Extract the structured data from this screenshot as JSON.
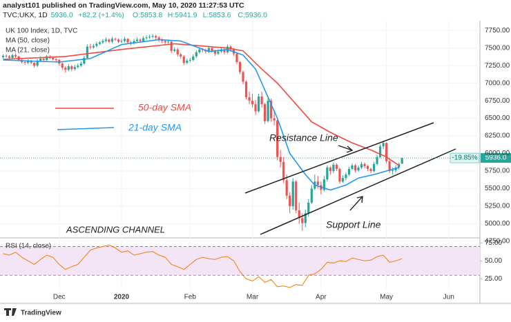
{
  "header": {
    "publisher": "analyst101 published on TradingView.com, May 10, 2020 11:27:53 UTC",
    "symbol": "TVC:UKX, 1D",
    "quote": [
      "5936.0",
      "+82.2 (+1.4%)",
      "O:5853.8",
      "H:5941.9",
      "L:5853.6",
      "C:5936.0"
    ]
  },
  "footer": {
    "brand": "TradingView"
  },
  "chart_data": {
    "type": "candlestick",
    "title": "UK 100 Index, 1D, TVC",
    "up_color": "#26a69a",
    "down_color": "#ef5350",
    "grid": true,
    "xlim": [
      -1,
      153
    ],
    "xticks": [
      {
        "value": 18,
        "label": "Dec"
      },
      {
        "value": 38,
        "label": "2020"
      },
      {
        "value": 60,
        "label": "Feb"
      },
      {
        "value": 80,
        "label": "Mar"
      },
      {
        "value": 102,
        "label": "Apr"
      },
      {
        "value": 123,
        "label": "May"
      },
      {
        "value": 143,
        "label": "Jun"
      }
    ],
    "ylim": [
      4740,
      7840
    ],
    "yticks": [
      {
        "value": 4750,
        "label": "4750.00"
      },
      {
        "value": 5000,
        "label": "5000.00"
      },
      {
        "value": 5250,
        "label": "5250.00"
      },
      {
        "value": 5500,
        "label": "5500.00"
      },
      {
        "value": 5750,
        "label": "5750.00"
      },
      {
        "value": 6000,
        "label": "6000.00"
      },
      {
        "value": 6250,
        "label": "6250.00"
      },
      {
        "value": 6500,
        "label": "6500.00"
      },
      {
        "value": 6750,
        "label": "6750.00"
      },
      {
        "value": 7000,
        "label": "7000.00"
      },
      {
        "value": 7250,
        "label": "7250.00"
      },
      {
        "value": 7500,
        "label": "7500.00"
      },
      {
        "value": 7750,
        "label": "7750.00"
      }
    ],
    "ohlc": [
      [
        7370,
        7410,
        7350,
        7390
      ],
      [
        7390,
        7410,
        7360,
        7380
      ],
      [
        7380,
        7400,
        7340,
        7360
      ],
      [
        7360,
        7420,
        7340,
        7400
      ],
      [
        7400,
        7420,
        7360,
        7380
      ],
      [
        7380,
        7390,
        7310,
        7330
      ],
      [
        7330,
        7350,
        7280,
        7300
      ],
      [
        7300,
        7320,
        7260,
        7290
      ],
      [
        7290,
        7340,
        7270,
        7310
      ],
      [
        7310,
        7330,
        7270,
        7290
      ],
      [
        7290,
        7300,
        7220,
        7250
      ],
      [
        7250,
        7340,
        7230,
        7320
      ],
      [
        7320,
        7380,
        7300,
        7350
      ],
      [
        7350,
        7370,
        7300,
        7330
      ],
      [
        7330,
        7400,
        7310,
        7380
      ],
      [
        7380,
        7400,
        7340,
        7360
      ],
      [
        7360,
        7380,
        7320,
        7340
      ],
      [
        7340,
        7360,
        7300,
        7330
      ],
      [
        7330,
        7340,
        7250,
        7280
      ],
      [
        7280,
        7300,
        7190,
        7220
      ],
      [
        7220,
        7240,
        7150,
        7190
      ],
      [
        7190,
        7270,
        7170,
        7240
      ],
      [
        7240,
        7260,
        7170,
        7200
      ],
      [
        7200,
        7260,
        7180,
        7230
      ],
      [
        7230,
        7280,
        7210,
        7250
      ],
      [
        7250,
        7310,
        7230,
        7280
      ],
      [
        7280,
        7390,
        7260,
        7360
      ],
      [
        7360,
        7550,
        7350,
        7520
      ],
      [
        7520,
        7560,
        7480,
        7510
      ],
      [
        7510,
        7560,
        7490,
        7530
      ],
      [
        7530,
        7590,
        7510,
        7560
      ],
      [
        7560,
        7600,
        7540,
        7580
      ],
      [
        7580,
        7630,
        7560,
        7600
      ],
      [
        7600,
        7650,
        7580,
        7620
      ],
      [
        7620,
        7640,
        7570,
        7590
      ],
      [
        7590,
        7660,
        7570,
        7630
      ],
      [
        7630,
        7650,
        7600,
        7620
      ],
      [
        7620,
        7640,
        7570,
        7590
      ],
      [
        7590,
        7630,
        7570,
        7600
      ],
      [
        7600,
        7660,
        7580,
        7630
      ],
      [
        7630,
        7640,
        7560,
        7580
      ],
      [
        7580,
        7600,
        7540,
        7570
      ],
      [
        7570,
        7630,
        7550,
        7600
      ],
      [
        7600,
        7650,
        7580,
        7620
      ],
      [
        7620,
        7640,
        7580,
        7600
      ],
      [
        7600,
        7670,
        7580,
        7640
      ],
      [
        7640,
        7680,
        7620,
        7650
      ],
      [
        7650,
        7690,
        7630,
        7660
      ],
      [
        7660,
        7700,
        7640,
        7670
      ],
      [
        7670,
        7690,
        7620,
        7650
      ],
      [
        7650,
        7670,
        7590,
        7620
      ],
      [
        7620,
        7640,
        7570,
        7600
      ],
      [
        7600,
        7620,
        7550,
        7580
      ],
      [
        7580,
        7620,
        7560,
        7590
      ],
      [
        7590,
        7600,
        7430,
        7460
      ],
      [
        7460,
        7510,
        7440,
        7480
      ],
      [
        7480,
        7500,
        7380,
        7410
      ],
      [
        7410,
        7430,
        7350,
        7380
      ],
      [
        7380,
        7400,
        7260,
        7290
      ],
      [
        7290,
        7350,
        7270,
        7320
      ],
      [
        7320,
        7360,
        7300,
        7330
      ],
      [
        7330,
        7410,
        7310,
        7380
      ],
      [
        7380,
        7470,
        7360,
        7440
      ],
      [
        7440,
        7510,
        7420,
        7480
      ],
      [
        7480,
        7500,
        7440,
        7470
      ],
      [
        7470,
        7490,
        7420,
        7450
      ],
      [
        7450,
        7530,
        7430,
        7500
      ],
      [
        7500,
        7520,
        7440,
        7460
      ],
      [
        7460,
        7480,
        7390,
        7420
      ],
      [
        7420,
        7480,
        7400,
        7450
      ],
      [
        7450,
        7510,
        7430,
        7480
      ],
      [
        7480,
        7500,
        7410,
        7440
      ],
      [
        7440,
        7550,
        7420,
        7520
      ],
      [
        7520,
        7540,
        7450,
        7480
      ],
      [
        7480,
        7500,
        7390,
        7420
      ],
      [
        7420,
        7430,
        7270,
        7300
      ],
      [
        7300,
        7310,
        7130,
        7160
      ],
      [
        7160,
        7180,
        6990,
        7020
      ],
      [
        7020,
        7040,
        6770,
        6800
      ],
      [
        6800,
        6880,
        6700,
        6750
      ],
      [
        6750,
        6850,
        6650,
        6700
      ],
      [
        6700,
        6760,
        6550,
        6600
      ],
      [
        6600,
        6850,
        6580,
        6810
      ],
      [
        6810,
        6880,
        6650,
        6700
      ],
      [
        6700,
        6720,
        6420,
        6460
      ],
      [
        6460,
        6800,
        6440,
        6750
      ],
      [
        6750,
        6780,
        6450,
        6500
      ],
      [
        6500,
        6600,
        6400,
        6470
      ],
      [
        6470,
        6480,
        5900,
        5950
      ],
      [
        5950,
        6050,
        5800,
        5880
      ],
      [
        5880,
        5950,
        5580,
        5620
      ],
      [
        5620,
        5700,
        5350,
        5400
      ],
      [
        5400,
        5450,
        5150,
        5250
      ],
      [
        5250,
        5650,
        5200,
        5600
      ],
      [
        5600,
        5620,
        5150,
        5190
      ],
      [
        5190,
        5300,
        5000,
        5080
      ],
      [
        5080,
        5150,
        4900,
        5010
      ],
      [
        5010,
        5200,
        4950,
        5150
      ],
      [
        5150,
        5350,
        5100,
        5300
      ],
      [
        5300,
        5550,
        5280,
        5500
      ],
      [
        5500,
        5700,
        5480,
        5600
      ],
      [
        5600,
        5680,
        5500,
        5550
      ],
      [
        5550,
        5600,
        5420,
        5480
      ],
      [
        5480,
        5680,
        5460,
        5630
      ],
      [
        5630,
        5830,
        5600,
        5800
      ],
      [
        5800,
        5820,
        5700,
        5750
      ],
      [
        5750,
        5870,
        5720,
        5840
      ],
      [
        5840,
        5860,
        5750,
        5780
      ],
      [
        5780,
        5800,
        5570,
        5600
      ],
      [
        5600,
        5690,
        5580,
        5650
      ],
      [
        5650,
        5730,
        5620,
        5700
      ],
      [
        5700,
        5810,
        5680,
        5780
      ],
      [
        5780,
        5860,
        5760,
        5830
      ],
      [
        5830,
        5850,
        5730,
        5760
      ],
      [
        5760,
        5830,
        5740,
        5800
      ],
      [
        5800,
        5880,
        5780,
        5850
      ],
      [
        5850,
        5870,
        5790,
        5820
      ],
      [
        5820,
        5840,
        5750,
        5780
      ],
      [
        5780,
        5800,
        5720,
        5750
      ],
      [
        5750,
        5880,
        5730,
        5850
      ],
      [
        5850,
        5980,
        5830,
        5950
      ],
      [
        5950,
        6130,
        5930,
        6100
      ],
      [
        6100,
        6180,
        6060,
        6150
      ],
      [
        6150,
        6160,
        5860,
        5890
      ],
      [
        5890,
        5910,
        5720,
        5750
      ],
      [
        5750,
        5800,
        5700,
        5760
      ],
      [
        5760,
        5830,
        5730,
        5800
      ],
      [
        5800,
        5870,
        5770,
        5850
      ],
      [
        5853.8,
        5941.9,
        5853.6,
        5936
      ]
    ],
    "series": [
      {
        "name": "MA (50, close)",
        "color": "#f04a3c",
        "x": [
          0,
          20,
          38,
          55,
          72,
          77,
          83,
          88,
          94,
          99,
          105,
          112,
          118,
          123,
          127
        ],
        "values": [
          7340,
          7380,
          7480,
          7560,
          7500,
          7460,
          7200,
          7000,
          6700,
          6450,
          6300,
          6150,
          6050,
          5950,
          5830
        ]
      },
      {
        "name": "MA (21, close)",
        "color": "#2196f3",
        "x": [
          0,
          18,
          28,
          38,
          50,
          57,
          66,
          72,
          77,
          81,
          83,
          88,
          92,
          97,
          100,
          105,
          110,
          114,
          119,
          123,
          127
        ],
        "values": [
          7330,
          7300,
          7350,
          7550,
          7620,
          7600,
          7450,
          7480,
          7400,
          7200,
          7000,
          6500,
          6000,
          5700,
          5550,
          5480,
          5550,
          5650,
          5700,
          5750,
          5800
        ]
      }
    ],
    "last_price_label": "5936.0",
    "change_label": "-19.85%",
    "annotations": {
      "sma50": "50-day SMA",
      "sma21": "21-day SMA",
      "resistance": "Resistance Line",
      "support": "Support Line",
      "pattern": "ASCENDING CHANNEL"
    },
    "rsi": {
      "name": "RSI (14, close)",
      "color": "#f57c00",
      "x": [
        0,
        2,
        4,
        6,
        8,
        10,
        12,
        14,
        16,
        18,
        20,
        22,
        24,
        26,
        28,
        30,
        32,
        34,
        36,
        38,
        40,
        42,
        44,
        46,
        48,
        50,
        52,
        54,
        56,
        58,
        60,
        62,
        64,
        66,
        68,
        70,
        72,
        74,
        76,
        78,
        80,
        82,
        84,
        86,
        88,
        90,
        92,
        94,
        96,
        98,
        100,
        102,
        104,
        106,
        108,
        110,
        112,
        114,
        116,
        118,
        120,
        122,
        124,
        126,
        128
      ],
      "values": [
        60,
        58,
        62,
        55,
        50,
        45,
        52,
        58,
        55,
        45,
        38,
        42,
        45,
        55,
        65,
        68,
        70,
        72,
        68,
        62,
        64,
        58,
        60,
        62,
        63,
        58,
        55,
        45,
        42,
        38,
        45,
        52,
        55,
        53,
        52,
        55,
        56,
        50,
        35,
        25,
        22,
        28,
        20,
        24,
        14,
        15,
        13,
        17,
        16,
        30,
        32,
        38,
        48,
        47,
        50,
        49,
        54,
        52,
        50,
        51,
        56,
        58,
        48,
        50,
        53
      ],
      "ylim": [
        10,
        82
      ],
      "yticks": [
        {
          "value": 25,
          "label": "25.00"
        },
        {
          "value": 50,
          "label": "50.00"
        },
        {
          "value": 75,
          "label": "75.00"
        }
      ],
      "band": [
        30,
        70
      ]
    }
  }
}
